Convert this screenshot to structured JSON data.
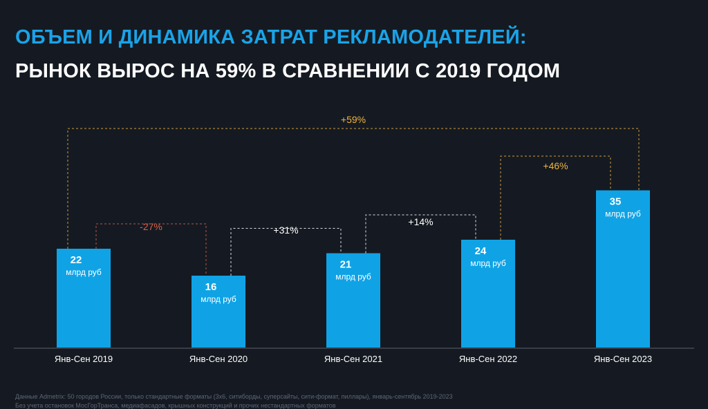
{
  "header": {
    "title": "ОБЪЕМ И ДИНАМИКА ЗАТРАТ РЕКЛАМОДАТЕЛЕЙ:",
    "subtitle": "РЫНОК ВЫРОС НА 59% В СРАВНЕНИИ С 2019 ГОДОМ"
  },
  "colors": {
    "background": "#151a22",
    "bar": "#0fa3e6",
    "title_accent": "#1aa3e8",
    "growth_total": "#f0b43c",
    "decline": "#d4614a",
    "neutral_change": "#ffffff"
  },
  "chart_data": {
    "type": "bar",
    "categories": [
      "Янв-Сен 2019",
      "Янв-Сен 2020",
      "Янв-Сен 2021",
      "Янв-Сен 2022",
      "Янв-Сен 2023"
    ],
    "values": [
      22,
      16,
      21,
      24,
      35
    ],
    "value_unit": "млрд руб",
    "ylim": [
      0,
      40
    ],
    "grid": false,
    "changes": [
      {
        "from": 0,
        "to": 1,
        "label": "-27%",
        "color": "#d4614a"
      },
      {
        "from": 1,
        "to": 2,
        "label": "+31%",
        "color": "#ffffff"
      },
      {
        "from": 2,
        "to": 3,
        "label": "+14%",
        "color": "#ffffff"
      },
      {
        "from": 3,
        "to": 4,
        "label": "+46%",
        "color": "#f0b43c"
      },
      {
        "from": 0,
        "to": 4,
        "label": "+59%",
        "color": "#f0b43c"
      }
    ]
  },
  "footnotes": {
    "line1": "Данные Admetrix: 50 городов России, только стандартные форматы (3х6, ситиборды, суперсайты, сити-формат, пиллары), январь-сентябрь 2019-2023",
    "line2": "Без учета остановок МосГорТранса, медиафасадов, крышных конструкций и прочих нестандартных форматов"
  }
}
